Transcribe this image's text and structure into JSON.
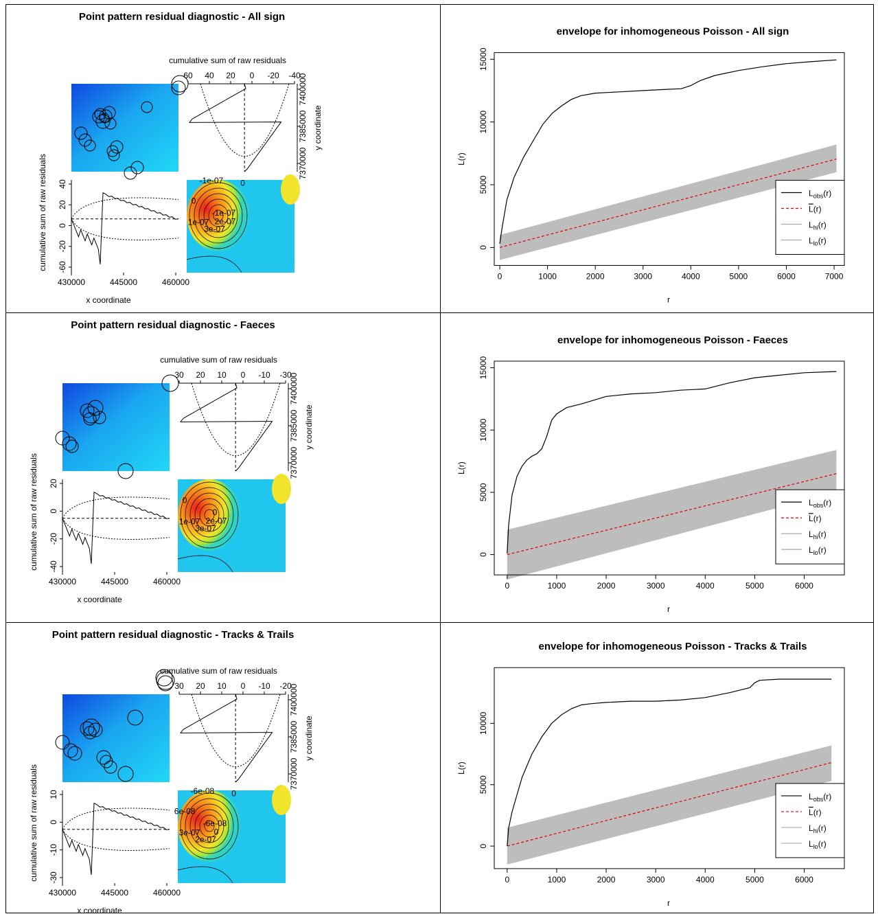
{
  "panels": [
    {
      "diag": {
        "title": "Point pattern residual diagnostic - All sign",
        "top_label": "cumulative sum of raw residuals",
        "right_label": "y coordinate",
        "left_label": "cumulative sum of raw residuals",
        "bottom_label": "x coordinate",
        "top_ticks": [
          "60",
          "40",
          "20",
          "0",
          "-20",
          "-40"
        ],
        "right_ticks": [
          "7370000",
          "7385000",
          "7400000"
        ],
        "left_ticks": [
          "-60",
          "-20",
          "0",
          "20",
          "40"
        ],
        "bottom_ticks": [
          "430000",
          "445000",
          "460000"
        ],
        "contour_labels": [
          "-1e-07",
          "2e-07",
          "3e-07",
          "1e-07",
          "0",
          "-1e-07",
          "0"
        ],
        "marks_top": [
          40,
          20,
          0,
          -20
        ],
        "left_range": [
          -60,
          40
        ]
      },
      "env": {
        "title": "envelope for inhomogeneous Poisson - All sign",
        "ylabel": "L(r)",
        "xlabel": "r",
        "x_ticks": [
          "0",
          "1000",
          "2000",
          "3000",
          "4000",
          "5000",
          "6000",
          "7000"
        ],
        "y_ticks": [
          "0",
          "5000",
          "10000",
          "15000"
        ],
        "legend": [
          "L",
          "obs",
          "L",
          "hi",
          "L",
          "lo"
        ]
      }
    },
    {
      "diag": {
        "title": "Point pattern residual diagnostic - Faeces",
        "top_label": "cumulative sum of raw residuals",
        "right_label": "y coordinate",
        "left_label": "cumulative sum of raw residuals",
        "bottom_label": "x coordinate",
        "top_ticks": [
          "30",
          "20",
          "10",
          "0",
          "-10",
          "-30"
        ],
        "right_ticks": [
          "7370000",
          "7385000",
          "7400000"
        ],
        "left_ticks": [
          "-40",
          "-20",
          "0",
          "20"
        ],
        "bottom_ticks": [
          "430000",
          "445000",
          "460000"
        ],
        "contour_labels": [
          "0",
          "2e-07",
          "3e-07",
          "1e-07",
          "0"
        ]
      },
      "env": {
        "title": "envelope for inhomogeneous Poisson - Faeces",
        "ylabel": "L(r)",
        "xlabel": "r",
        "x_ticks": [
          "0",
          "1000",
          "2000",
          "3000",
          "4000",
          "5000",
          "6000"
        ],
        "y_ticks": [
          "0",
          "5000",
          "10000",
          "15000"
        ],
        "legend": [
          "L",
          "obs",
          "L",
          "hi",
          "L",
          "lo"
        ]
      }
    },
    {
      "diag": {
        "title": "Point pattern residual diagnostic - Tracks & Trails",
        "top_label": "cumulative sum of raw residuals",
        "right_label": "y coordinate",
        "left_label": "cumulative sum of raw residuals",
        "bottom_label": "x coordinate",
        "top_ticks": [
          "30",
          "20",
          "10",
          "0",
          "-10",
          "-20"
        ],
        "right_ticks": [
          "7370000",
          "7385000",
          "7400000"
        ],
        "left_ticks": [
          "-30",
          "-10",
          "0",
          "10"
        ],
        "bottom_ticks": [
          "430000",
          "445000",
          "460000"
        ],
        "contour_labels": [
          "-6e-08",
          "0",
          "2e-07",
          "3e-07",
          "6e-08",
          "-6e-08",
          "0"
        ]
      },
      "env": {
        "title": "envelope for inhomogeneous Poisson - Tracks & Trails",
        "ylabel": "L(r)",
        "xlabel": "r",
        "x_ticks": [
          "0",
          "1000",
          "2000",
          "3000",
          "4000",
          "5000",
          "6000"
        ],
        "y_ticks": [
          "0",
          "5000",
          "10000"
        ],
        "legend": [
          "L",
          "obs",
          "L",
          "hi",
          "L",
          "lo"
        ]
      }
    }
  ],
  "chart_data": [
    {
      "type": "line",
      "title": "envelope for inhomogeneous Poisson - All sign",
      "xlabel": "r",
      "ylabel": "L(r)",
      "xlim": [
        0,
        7100
      ],
      "ylim": [
        -1100,
        15200
      ],
      "legend_position": "bottom-right",
      "series": [
        {
          "name": "Lobs(r)",
          "style": "solid",
          "color": "#000000",
          "x": [
            0,
            50,
            150,
            300,
            500,
            700,
            900,
            1100,
            1300,
            1500,
            1700,
            2000,
            2500,
            3000,
            3500,
            3800,
            4000,
            4200,
            4500,
            5000,
            5500,
            6000,
            6500,
            7050
          ],
          "y": [
            300,
            1600,
            3800,
            5600,
            7200,
            8500,
            9800,
            10700,
            11300,
            11800,
            12100,
            12300,
            12400,
            12500,
            12600,
            12650,
            12900,
            13300,
            13700,
            14100,
            14400,
            14650,
            14800,
            14950
          ]
        },
        {
          "name": "L(r) theoretical",
          "style": "dashed",
          "color": "#e00000",
          "x": [
            0,
            7050
          ],
          "y": [
            0,
            7050
          ]
        },
        {
          "name": "Lhi(r)",
          "style": "envelope-upper",
          "color": "#bbbbbb",
          "x": [
            0,
            7050
          ],
          "y": [
            1000,
            8200
          ]
        },
        {
          "name": "Llo(r)",
          "style": "envelope-lower",
          "color": "#bbbbbb",
          "x": [
            0,
            7050
          ],
          "y": [
            -1000,
            6000
          ]
        }
      ]
    },
    {
      "type": "line",
      "title": "envelope for inhomogeneous Poisson - Faeces",
      "xlabel": "r",
      "ylabel": "L(r)",
      "xlim": [
        -150,
        6700
      ],
      "ylim": [
        -1300,
        15200
      ],
      "legend_position": "bottom-right",
      "series": [
        {
          "name": "Lobs(r)",
          "style": "solid",
          "color": "#000000",
          "x": [
            0,
            30,
            100,
            200,
            300,
            400,
            500,
            600,
            700,
            800,
            900,
            1000,
            1200,
            1500,
            2000,
            2500,
            3000,
            3500,
            4000,
            4500,
            5000,
            5500,
            6000,
            6650
          ],
          "y": [
            100,
            2400,
            4800,
            6300,
            7100,
            7600,
            7900,
            8100,
            8500,
            9500,
            10800,
            11300,
            11800,
            12100,
            12700,
            12900,
            13000,
            13200,
            13300,
            13800,
            14200,
            14400,
            14600,
            14700
          ]
        },
        {
          "name": "L(r) theoretical",
          "style": "dashed",
          "color": "#e00000",
          "x": [
            0,
            6650
          ],
          "y": [
            0,
            6500
          ]
        },
        {
          "name": "Lhi(r)",
          "style": "envelope-upper",
          "color": "#bbbbbb",
          "x": [
            0,
            6650
          ],
          "y": [
            2000,
            8400
          ]
        },
        {
          "name": "Llo(r)",
          "style": "envelope-lower",
          "color": "#bbbbbb",
          "x": [
            0,
            6650
          ],
          "y": [
            -2000,
            5000
          ]
        }
      ]
    },
    {
      "type": "line",
      "title": "envelope for inhomogeneous Poisson - Tracks & Trails",
      "xlabel": "r",
      "ylabel": "L(r)",
      "xlim": [
        -150,
        6700
      ],
      "ylim": [
        -1500,
        14200
      ],
      "legend_position": "bottom-right",
      "series": [
        {
          "name": "Lobs(r)",
          "style": "solid",
          "color": "#000000",
          "x": [
            0,
            30,
            100,
            200,
            300,
            500,
            700,
            900,
            1100,
            1300,
            1500,
            1700,
            2000,
            2500,
            3000,
            3500,
            4000,
            4500,
            4900,
            5000,
            5100,
            5500,
            6000,
            6550
          ],
          "y": [
            0,
            1500,
            2800,
            4200,
            5600,
            7500,
            8900,
            10000,
            10700,
            11200,
            11500,
            11600,
            11700,
            11800,
            11800,
            11900,
            12100,
            12500,
            12900,
            13300,
            13500,
            13600,
            13600,
            13600
          ]
        },
        {
          "name": "L(r) theoretical",
          "style": "dashed",
          "color": "#e00000",
          "x": [
            0,
            6550
          ],
          "y": [
            0,
            6800
          ]
        },
        {
          "name": "Lhi(r)",
          "style": "envelope-upper",
          "color": "#bbbbbb",
          "x": [
            0,
            6550
          ],
          "y": [
            1500,
            8200
          ]
        },
        {
          "name": "Llo(r)",
          "style": "envelope-lower",
          "color": "#bbbbbb",
          "x": [
            0,
            6550
          ],
          "y": [
            -1500,
            5300
          ]
        }
      ]
    }
  ]
}
